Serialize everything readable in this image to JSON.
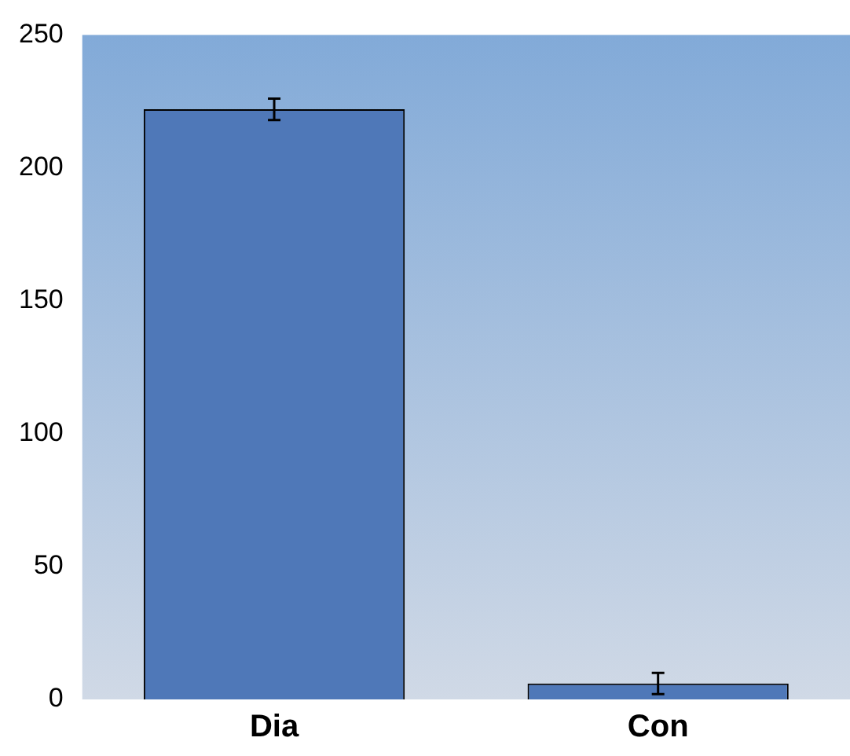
{
  "chart_data": {
    "type": "bar",
    "categories": [
      "Dia",
      "Con"
    ],
    "values": [
      222,
      6
    ],
    "errors": [
      4,
      4
    ],
    "color": "#4f78b8",
    "ylim": [
      0,
      250
    ],
    "yticks": [
      0,
      50,
      100,
      150,
      200,
      250
    ],
    "grid": false,
    "legend": false
  }
}
